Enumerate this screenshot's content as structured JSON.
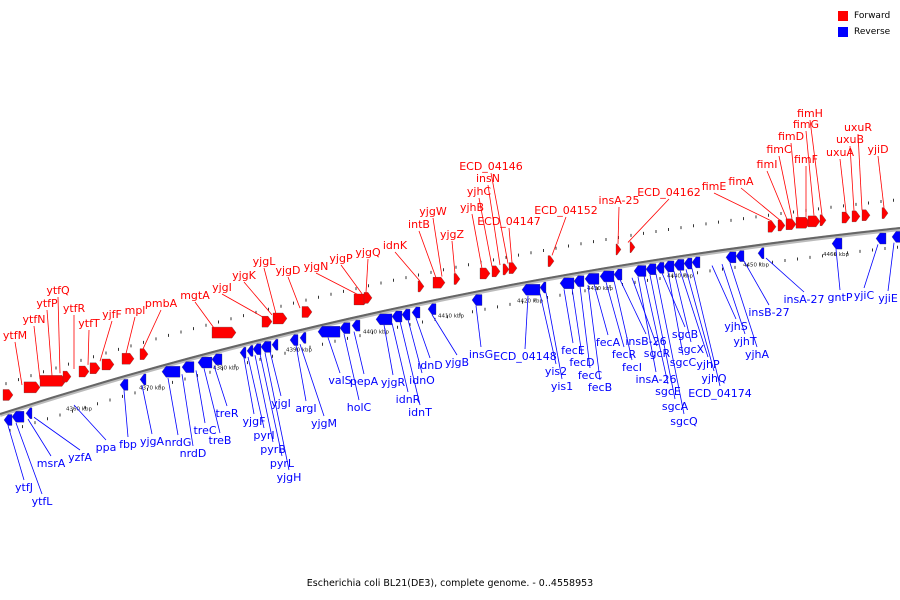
{
  "legend": {
    "forward": {
      "label": "Forward",
      "color": "#ff0000"
    },
    "reverse": {
      "label": "Reverse",
      "color": "#0000ff"
    }
  },
  "caption": "Escherichia coli BL21(DE3), complete genome. - 0..4558953",
  "ticks": [
    "4360 kbp",
    "4370 kbp",
    "4380 kbp",
    "4390 kbp",
    "4400 kbp",
    "4410 kbp",
    "4420 kbp",
    "4430 kbp",
    "4440 kbp",
    "4450 kbp",
    "4460 kbp"
  ],
  "forward_labels": [
    "ytfM",
    "ytfN",
    "ytfP",
    "ytfQ",
    "ytfR",
    "ytfT",
    "yjfF",
    "mpl",
    "pmbA",
    "mgtA",
    "yjgI",
    "yjgK",
    "yjgL",
    "yjgD",
    "yjgN",
    "yjgP",
    "yjgQ",
    "idnK",
    "intB",
    "yjgW",
    "yjgZ",
    "yjhB",
    "yjhC",
    "insN",
    "ECD_04146",
    "ECD_04147",
    "ECD_04152",
    "insA-25",
    "ECD_04162",
    "fimE",
    "fimA",
    "fimI",
    "fimC",
    "fimD",
    "fimF",
    "fimG",
    "fimH",
    "uxuA",
    "uxuB",
    "uxuR",
    "yjiD"
  ],
  "reverse_labels": [
    "ytfJ",
    "ytfL",
    "msrA",
    "yzfA",
    "ppa",
    "fbp",
    "yjgA",
    "nrdG",
    "nrdD",
    "treC",
    "treB",
    "treR",
    "yjgF",
    "pyrI",
    "pyrB",
    "pyrL",
    "yjgH",
    "yjgI",
    "argI",
    "yjgM",
    "valS",
    "holC",
    "pepA",
    "yjgR",
    "idnR",
    "idnT",
    "idnO",
    "idnD",
    "yjgB",
    "insG",
    "ECD_04148",
    "yis2",
    "yis1",
    "fecE",
    "fecD",
    "fecC",
    "fecB",
    "fecA",
    "fecR",
    "fecI",
    "insB-26",
    "sgcR",
    "insA-26",
    "sgcE",
    "sgcA",
    "sgcQ",
    "sgcB",
    "sgcC",
    "sgcX",
    "yjhP",
    "yjhQ",
    "ECD_04174",
    "yjhS",
    "yjhT",
    "yjhA",
    "insB-27",
    "insA-27",
    "gntP",
    "yjiC",
    "yjiE"
  ]
}
